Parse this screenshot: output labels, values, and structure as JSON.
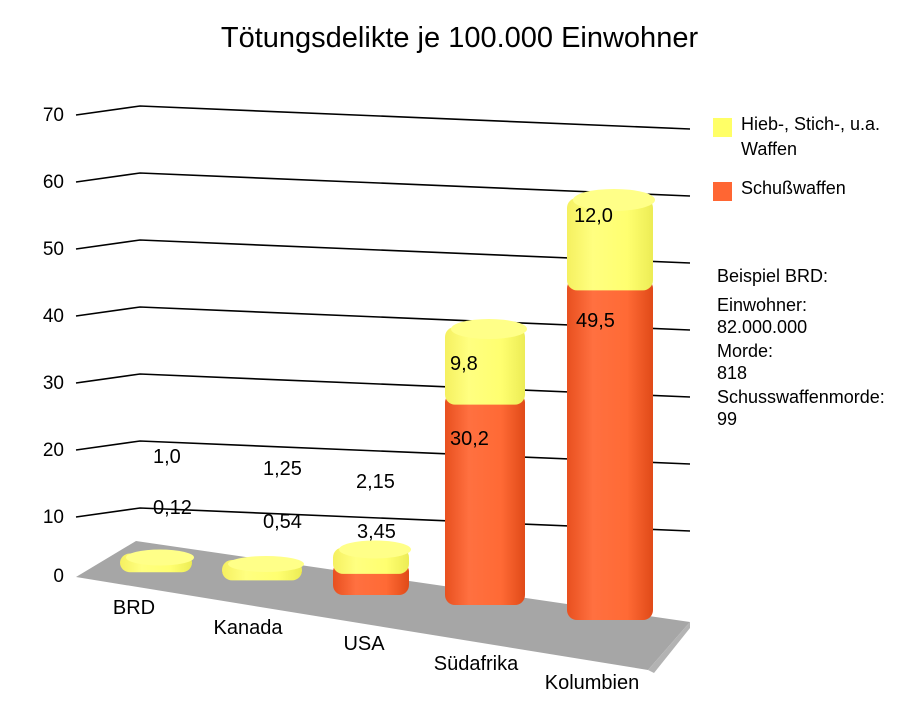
{
  "chart_data": {
    "type": "bar",
    "stacked": true,
    "title": "Tötungsdelikte je 100.000 Einwohner",
    "categories": [
      "BRD",
      "Kanada",
      "USA",
      "Südafrika",
      "Kolumbien"
    ],
    "series": [
      {
        "name": "Schußwaffen",
        "values": [
          0.12,
          0.54,
          3.45,
          30.2,
          49.5
        ],
        "labels": [
          "0,12",
          "0,54",
          "3,45",
          "30,2",
          "49,5"
        ],
        "color": "#ff6633"
      },
      {
        "name": "Hieb-, Stich-, u.a. Waffen",
        "values": [
          1.0,
          1.25,
          2.15,
          9.8,
          12.0
        ],
        "labels": [
          "1,0",
          "1,25",
          "2,15",
          "9,8",
          "12,0"
        ],
        "color": "#ffff66"
      }
    ],
    "yticks": [
      "0",
      "10",
      "20",
      "30",
      "40",
      "50",
      "60",
      "70"
    ],
    "ylim": [
      0,
      70
    ],
    "grid": true,
    "legend_position": "right"
  },
  "legend": {
    "items": [
      {
        "lines": [
          "Hieb-, Stich-, u.a.",
          "Waffen"
        ],
        "color": "#ffff66"
      },
      {
        "lines": [
          "Schußwaffen"
        ],
        "color": "#ff6633"
      }
    ]
  },
  "info": {
    "heading": "Beispiel BRD:",
    "einwohner_label": "Einwohner:",
    "einwohner_value": "82.000.000",
    "morde_label": "Morde:",
    "morde_value": "818",
    "schuss_label": "Schusswaffenmorde:",
    "schuss_value": "99"
  },
  "colors": {
    "floor": "#a6a6a6",
    "floor_front": "#b3b3b3",
    "gridline": "#000000"
  }
}
